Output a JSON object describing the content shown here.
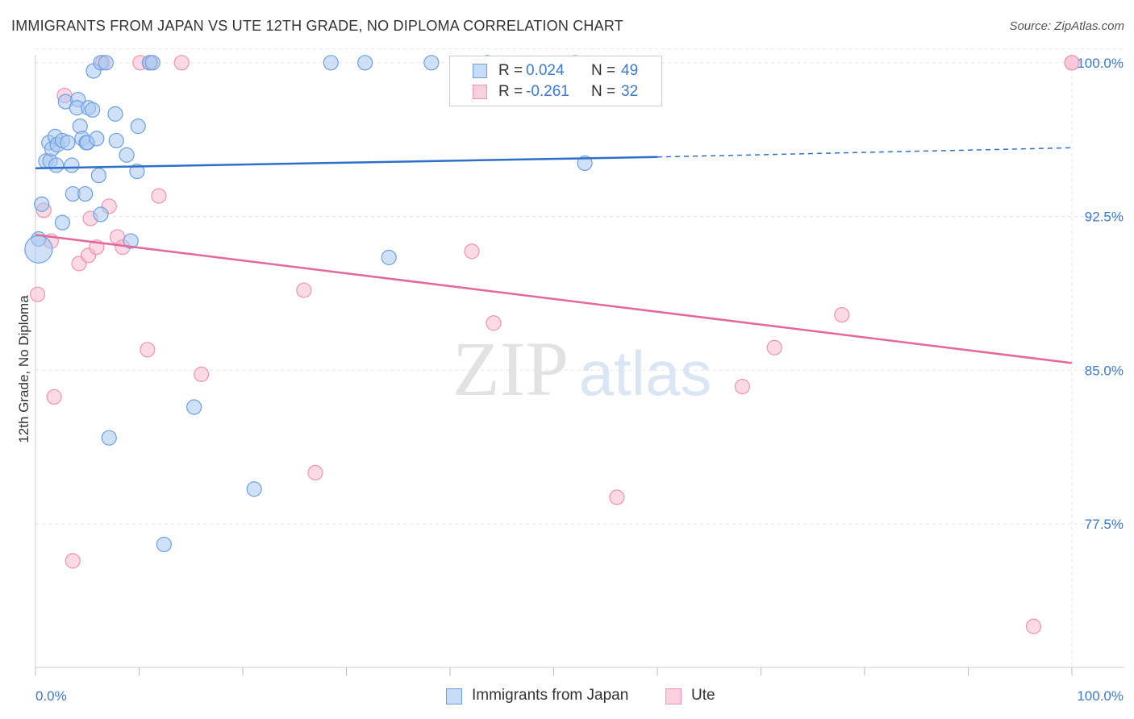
{
  "title": "IMMIGRANTS FROM JAPAN VS UTE 12TH GRADE, NO DIPLOMA CORRELATION CHART",
  "source": "Source: ZipAtlas.com",
  "watermark": {
    "zip": "ZIP",
    "atlas": "atlas"
  },
  "legend": {
    "r_label": "R =",
    "n_label": "N =",
    "japan": {
      "r": "0.024",
      "n": "49"
    },
    "ute": {
      "r": "-0.261",
      "n": "32"
    }
  },
  "colors": {
    "japan_fill": "#a9c8f0",
    "japan_stroke": "#6d9fe0",
    "japan_line": "#2f6fcc",
    "ute_fill": "#f7bcd0",
    "ute_stroke": "#ee93b2",
    "ute_line": "#e2699a",
    "tick_text": "#3d78c9"
  },
  "chart_data": {
    "type": "scatter",
    "title": "IMMIGRANTS FROM JAPAN VS UTE 12TH GRADE, NO DIPLOMA CORRELATION CHART",
    "xlabel": "",
    "ylabel": "12th Grade, No Diploma",
    "xlim": [
      0,
      100
    ],
    "ylim": [
      70.5,
      100.7
    ],
    "x_tick_labels": [
      "0.0%",
      "100.0%"
    ],
    "y_ticks": [
      77.5,
      85.0,
      92.5,
      100.0
    ],
    "y_tick_labels": [
      "77.5%",
      "85.0%",
      "92.5%",
      "100.0%"
    ],
    "grid": true,
    "legend_position": "top-center",
    "series": [
      {
        "name": "Immigrants from Japan",
        "r": 0.024,
        "n": 49,
        "trend": {
          "x": [
            0,
            60,
            100
          ],
          "y": [
            94.85,
            95.4,
            95.85
          ],
          "solid_until": 60
        },
        "points": [
          [
            0.3,
            91.4
          ],
          [
            0.3,
            90.9
          ],
          [
            0.6,
            93.1
          ],
          [
            1.0,
            95.2
          ],
          [
            1.3,
            96.1
          ],
          [
            1.4,
            95.2
          ],
          [
            1.6,
            95.8
          ],
          [
            1.9,
            96.4
          ],
          [
            2.0,
            95.0
          ],
          [
            2.1,
            96.0
          ],
          [
            2.6,
            96.2
          ],
          [
            2.6,
            92.2
          ],
          [
            3.1,
            96.1
          ],
          [
            3.5,
            95.0
          ],
          [
            3.6,
            93.6
          ],
          [
            2.9,
            98.1
          ],
          [
            4.1,
            98.2
          ],
          [
            4.0,
            97.8
          ],
          [
            4.3,
            96.9
          ],
          [
            4.5,
            96.3
          ],
          [
            4.8,
            93.6
          ],
          [
            4.9,
            96.1
          ],
          [
            5.0,
            96.1
          ],
          [
            5.1,
            97.8
          ],
          [
            5.5,
            97.7
          ],
          [
            5.6,
            99.6
          ],
          [
            5.9,
            96.3
          ],
          [
            6.1,
            94.5
          ],
          [
            6.3,
            92.6
          ],
          [
            6.3,
            100.0
          ],
          [
            6.8,
            100.0
          ],
          [
            7.1,
            81.7
          ],
          [
            7.7,
            97.5
          ],
          [
            7.8,
            96.2
          ],
          [
            8.8,
            95.5
          ],
          [
            9.2,
            91.3
          ],
          [
            9.8,
            94.7
          ],
          [
            9.9,
            96.9
          ],
          [
            11.0,
            100.0
          ],
          [
            11.3,
            100.0
          ],
          [
            12.4,
            76.5
          ],
          [
            15.3,
            83.2
          ],
          [
            21.1,
            79.2
          ],
          [
            28.5,
            100.0
          ],
          [
            31.8,
            100.0
          ],
          [
            34.1,
            90.5
          ],
          [
            38.2,
            100.0
          ],
          [
            43.6,
            100.0
          ],
          [
            53.0,
            95.1
          ]
        ]
      },
      {
        "name": "Ute",
        "r": -0.261,
        "n": 32,
        "trend": {
          "x": [
            0,
            100
          ],
          "y": [
            91.6,
            85.35
          ]
        },
        "points": [
          [
            0.2,
            88.7
          ],
          [
            0.8,
            92.8
          ],
          [
            1.5,
            91.3
          ],
          [
            1.8,
            83.7
          ],
          [
            2.8,
            98.4
          ],
          [
            3.6,
            75.7
          ],
          [
            4.2,
            90.2
          ],
          [
            5.1,
            90.6
          ],
          [
            5.3,
            92.4
          ],
          [
            5.9,
            91.0
          ],
          [
            6.5,
            100.0
          ],
          [
            7.1,
            93.0
          ],
          [
            7.9,
            91.5
          ],
          [
            8.4,
            91.0
          ],
          [
            10.1,
            100.0
          ],
          [
            10.8,
            86.0
          ],
          [
            11.1,
            100.0
          ],
          [
            11.9,
            93.5
          ],
          [
            14.1,
            100.0
          ],
          [
            16.0,
            84.8
          ],
          [
            25.9,
            88.9
          ],
          [
            27.0,
            80.0
          ],
          [
            42.1,
            90.8
          ],
          [
            44.2,
            87.3
          ],
          [
            52.1,
            100.0
          ],
          [
            56.1,
            78.8
          ],
          [
            68.2,
            84.2
          ],
          [
            71.3,
            86.1
          ],
          [
            77.8,
            87.7
          ],
          [
            96.3,
            72.5
          ],
          [
            100.0,
            100.0
          ],
          [
            100.0,
            100.0
          ]
        ]
      }
    ]
  }
}
